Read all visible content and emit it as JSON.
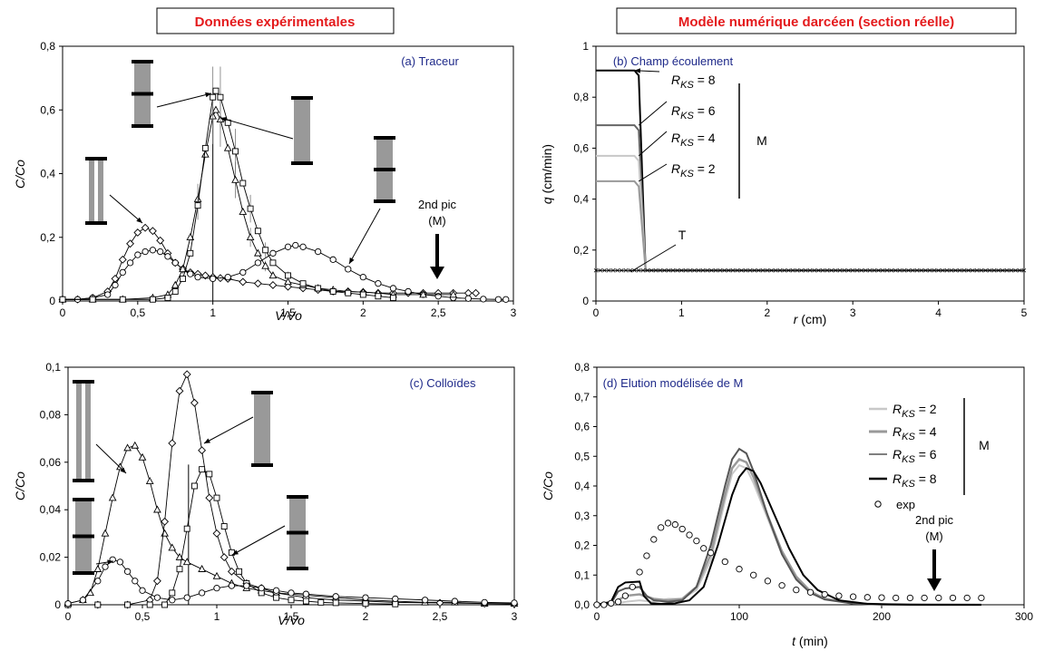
{
  "headers": {
    "left": "Données expérimentales",
    "right": "Modèle numérique darcéen (section réelle)",
    "color": "#e41a1c"
  },
  "chart_data": [
    {
      "id": "a",
      "type": "line",
      "panel_label": "(a) Traceur",
      "xlabel": "V/Vo",
      "ylabel": "C/Co",
      "xlim": [
        0,
        3
      ],
      "ylim": [
        0,
        0.8
      ],
      "xticks": [
        "0",
        "0,5",
        "1",
        "1,5",
        "2",
        "2,5",
        "3"
      ],
      "yticks": [
        "0",
        "0,2",
        "0,4",
        "0,6",
        "0,8"
      ],
      "annotation": {
        "line1": "2nd pic",
        "line2": "(M)"
      },
      "series": [
        {
          "marker": "diamond",
          "x": [
            0,
            0.1,
            0.2,
            0.3,
            0.35,
            0.4,
            0.45,
            0.5,
            0.55,
            0.6,
            0.65,
            0.7,
            0.75,
            0.8,
            0.85,
            0.9,
            0.95,
            1.0,
            1.05,
            1.1,
            1.2,
            1.3,
            1.4,
            1.5,
            1.6,
            1.7,
            1.8,
            1.9,
            2.0,
            2.1,
            2.2,
            2.3,
            2.4,
            2.5,
            2.6,
            2.7,
            2.75
          ],
          "y": [
            0.005,
            0.005,
            0.01,
            0.03,
            0.07,
            0.13,
            0.18,
            0.215,
            0.23,
            0.22,
            0.19,
            0.15,
            0.12,
            0.1,
            0.09,
            0.085,
            0.08,
            0.075,
            0.072,
            0.07,
            0.06,
            0.055,
            0.05,
            0.045,
            0.04,
            0.035,
            0.03,
            0.03,
            0.028,
            0.025,
            0.025,
            0.025,
            0.025,
            0.025,
            0.025,
            0.025,
            0.025
          ]
        },
        {
          "marker": "circle",
          "x": [
            0,
            0.1,
            0.2,
            0.3,
            0.35,
            0.4,
            0.45,
            0.5,
            0.55,
            0.6,
            0.65,
            0.7,
            0.75,
            0.8,
            0.85,
            0.9,
            1.0,
            1.1,
            1.2,
            1.3,
            1.4,
            1.5,
            1.55,
            1.6,
            1.7,
            1.8,
            1.9,
            2.0,
            2.1,
            2.2,
            2.3,
            2.4,
            2.5,
            2.6,
            2.7,
            2.8,
            2.9,
            2.95
          ],
          "y": [
            0.005,
            0.005,
            0.01,
            0.02,
            0.05,
            0.09,
            0.12,
            0.145,
            0.155,
            0.16,
            0.155,
            0.14,
            0.12,
            0.1,
            0.085,
            0.075,
            0.07,
            0.075,
            0.09,
            0.12,
            0.15,
            0.17,
            0.175,
            0.17,
            0.155,
            0.13,
            0.1,
            0.075,
            0.055,
            0.04,
            0.03,
            0.02,
            0.015,
            0.01,
            0.008,
            0.006,
            0.005,
            0.005
          ]
        },
        {
          "marker": "triangle",
          "x": [
            0,
            0.2,
            0.4,
            0.6,
            0.7,
            0.75,
            0.8,
            0.85,
            0.9,
            0.95,
            1.0,
            1.02,
            1.05,
            1.1,
            1.15,
            1.2,
            1.25,
            1.3,
            1.35,
            1.4,
            1.5,
            1.6,
            1.7,
            1.8,
            1.9,
            2.0,
            2.1,
            2.2,
            2.4,
            2.6
          ],
          "y": [
            0.005,
            0.005,
            0.005,
            0.01,
            0.02,
            0.05,
            0.1,
            0.2,
            0.32,
            0.46,
            0.58,
            0.6,
            0.57,
            0.48,
            0.38,
            0.28,
            0.2,
            0.15,
            0.11,
            0.08,
            0.06,
            0.05,
            0.04,
            0.035,
            0.03,
            0.028,
            0.025,
            0.02,
            0.02,
            0.02
          ]
        },
        {
          "marker": "square",
          "x": [
            0,
            0.2,
            0.4,
            0.6,
            0.7,
            0.75,
            0.8,
            0.85,
            0.9,
            0.95,
            1.0,
            1.02,
            1.05,
            1.1,
            1.15,
            1.2,
            1.25,
            1.3,
            1.35,
            1.4,
            1.5,
            1.6,
            1.7,
            1.8,
            1.9,
            2.0,
            2.1,
            2.2
          ],
          "y": [
            0.005,
            0.005,
            0.005,
            0.005,
            0.01,
            0.03,
            0.07,
            0.15,
            0.3,
            0.48,
            0.64,
            0.66,
            0.64,
            0.56,
            0.47,
            0.37,
            0.29,
            0.22,
            0.16,
            0.12,
            0.08,
            0.055,
            0.04,
            0.03,
            0.025,
            0.02,
            0.015,
            0.01
          ]
        }
      ]
    },
    {
      "id": "b",
      "type": "line",
      "panel_label": "(b) Champ écoulement",
      "xlabel_italic": "r",
      "xlabel_unit": " (cm)",
      "ylabel_italic": "q",
      "ylabel_unit": " (cm/min)",
      "xlim": [
        0,
        5
      ],
      "ylim": [
        0,
        1
      ],
      "xticks": [
        "0",
        "1",
        "2",
        "3",
        "4",
        "5"
      ],
      "yticks": [
        "0",
        "0,2",
        "0,4",
        "0,6",
        "0,8",
        "1"
      ],
      "group_label": "M",
      "tracer_label": "T",
      "rks_symbol": "R",
      "rks_sub": "KS",
      "series": [
        {
          "label": "= 8",
          "color": "#000000",
          "q_left": 0.905,
          "r_step": 0.5
        },
        {
          "label": "= 6",
          "color": "#666666",
          "q_left": 0.69,
          "r_step": 0.5
        },
        {
          "label": "= 4",
          "color": "#c8c8c8",
          "q_left": 0.57,
          "r_step": 0.5
        },
        {
          "label": "= 2",
          "color": "#999999",
          "q_left": 0.47,
          "r_step": 0.5
        },
        {
          "label": "T",
          "color": "#000000",
          "q_left": 0.12,
          "r_step": 0
        }
      ],
      "q_right": 0.12,
      "r_drop_end": 0.58
    },
    {
      "id": "c",
      "type": "line",
      "panel_label": "(c) Colloïdes",
      "xlabel": "V/Vo",
      "ylabel": "C/Co",
      "xlim": [
        0,
        3
      ],
      "ylim": [
        0,
        0.1
      ],
      "xticks": [
        "0",
        "0,5",
        "1",
        "1,5",
        "2",
        "2,5",
        "3"
      ],
      "yticks": [
        "0",
        "0,02",
        "0,04",
        "0,06",
        "0,08",
        "0,1"
      ],
      "series": [
        {
          "marker": "triangle",
          "x": [
            0,
            0.1,
            0.15,
            0.2,
            0.25,
            0.3,
            0.35,
            0.4,
            0.45,
            0.5,
            0.55,
            0.6,
            0.65,
            0.7,
            0.75,
            0.8,
            0.9,
            1.0,
            1.1,
            1.2,
            1.3,
            1.4,
            1.6,
            1.8,
            2.0,
            2.2,
            2.4,
            2.6,
            2.8,
            3.0
          ],
          "y": [
            0.0005,
            0.002,
            0.005,
            0.015,
            0.03,
            0.045,
            0.058,
            0.066,
            0.067,
            0.062,
            0.052,
            0.04,
            0.03,
            0.024,
            0.02,
            0.018,
            0.015,
            0.012,
            0.009,
            0.007,
            0.006,
            0.005,
            0.004,
            0.003,
            0.002,
            0.0015,
            0.001,
            0.001,
            0.0005,
            0.0005
          ]
        },
        {
          "marker": "diamond",
          "x": [
            0,
            0.2,
            0.4,
            0.55,
            0.6,
            0.65,
            0.7,
            0.75,
            0.8,
            0.85,
            0.9,
            0.95,
            1.0,
            1.05,
            1.1,
            1.2,
            1.3,
            1.4,
            1.6,
            1.8,
            2.0,
            2.2,
            2.5,
            2.8,
            3.0
          ],
          "y": [
            0.0,
            0.0,
            0.0,
            0.002,
            0.01,
            0.035,
            0.068,
            0.09,
            0.097,
            0.085,
            0.065,
            0.045,
            0.03,
            0.02,
            0.014,
            0.009,
            0.007,
            0.005,
            0.003,
            0.002,
            0.0015,
            0.001,
            0.0008,
            0.0005,
            0.0003
          ]
        },
        {
          "marker": "square",
          "x": [
            0,
            0.2,
            0.4,
            0.55,
            0.65,
            0.7,
            0.75,
            0.8,
            0.85,
            0.9,
            0.95,
            1.0,
            1.05,
            1.1,
            1.15,
            1.2,
            1.3,
            1.4,
            1.5,
            1.6,
            1.7,
            1.8,
            2.0,
            2.2
          ],
          "y": [
            0.0,
            0.0,
            0.0,
            0.0,
            0.0,
            0.005,
            0.015,
            0.032,
            0.05,
            0.057,
            0.055,
            0.045,
            0.033,
            0.022,
            0.014,
            0.009,
            0.005,
            0.003,
            0.002,
            0.0015,
            0.001,
            0.0008,
            0.0005,
            0.0003
          ]
        },
        {
          "marker": "circle",
          "x": [
            0,
            0.1,
            0.2,
            0.25,
            0.3,
            0.35,
            0.4,
            0.45,
            0.5,
            0.6,
            0.7,
            0.8,
            0.9,
            1.0,
            1.1,
            1.2,
            1.3,
            1.4,
            1.5,
            1.6,
            1.8,
            2.0,
            2.2,
            2.4,
            2.6,
            2.8,
            3.0
          ],
          "y": [
            0.0005,
            0.002,
            0.01,
            0.016,
            0.019,
            0.018,
            0.014,
            0.01,
            0.006,
            0.003,
            0.002,
            0.003,
            0.005,
            0.007,
            0.008,
            0.008,
            0.007,
            0.006,
            0.005,
            0.0045,
            0.0035,
            0.003,
            0.0025,
            0.002,
            0.0015,
            0.001,
            0.0008
          ]
        }
      ]
    },
    {
      "id": "d",
      "type": "line",
      "panel_label": "(d) Elution modélisée de M",
      "xlabel_italic": "t",
      "xlabel_unit": " (min)",
      "ylabel": "C/Co",
      "xlim": [
        0,
        300
      ],
      "ylim": [
        0,
        0.8
      ],
      "xticks": [
        "0",
        "100",
        "200",
        "300"
      ],
      "yticks": [
        "0,0",
        "0,1",
        "0,2",
        "0,3",
        "0,4",
        "0,5",
        "0,6",
        "0,7",
        "0,8"
      ],
      "annotation": {
        "line1": "2nd pic",
        "line2": "(M)"
      },
      "group_label": "M",
      "rks_symbol": "R",
      "rks_sub": "KS",
      "legend": [
        {
          "label": "= 2",
          "color": "#c8c8c8",
          "width": 2.5
        },
        {
          "label": "= 4",
          "color": "#999999",
          "width": 3
        },
        {
          "label": "= 6",
          "color": "#555555",
          "width": 1.5
        },
        {
          "label": "= 8",
          "color": "#000000",
          "width": 2.5
        }
      ],
      "exp_label": "exp",
      "series": [
        {
          "name": "R = 2",
          "color": "#c8c8c8",
          "x": [
            0,
            10,
            20,
            30,
            40,
            50,
            60,
            70,
            80,
            90,
            95,
            100,
            105,
            110,
            120,
            130,
            140,
            150,
            160,
            180,
            200,
            230,
            270
          ],
          "y": [
            0,
            0,
            0.01,
            0.015,
            0.01,
            0.02,
            0.02,
            0.05,
            0.15,
            0.35,
            0.44,
            0.47,
            0.46,
            0.41,
            0.29,
            0.17,
            0.09,
            0.045,
            0.02,
            0.005,
            0.001,
            0,
            0
          ]
        },
        {
          "name": "R = 4",
          "color": "#999999",
          "x": [
            0,
            10,
            20,
            30,
            40,
            50,
            60,
            70,
            80,
            90,
            95,
            100,
            105,
            110,
            120,
            130,
            140,
            150,
            160,
            180,
            200,
            230,
            270
          ],
          "y": [
            0,
            0.001,
            0.03,
            0.035,
            0.02,
            0.015,
            0.02,
            0.06,
            0.17,
            0.37,
            0.46,
            0.49,
            0.48,
            0.43,
            0.3,
            0.18,
            0.095,
            0.045,
            0.02,
            0.005,
            0.001,
            0,
            0
          ]
        },
        {
          "name": "R = 6",
          "color": "#555555",
          "x": [
            0,
            10,
            15,
            20,
            30,
            35,
            40,
            50,
            60,
            70,
            80,
            90,
            95,
            100,
            105,
            110,
            120,
            130,
            140,
            150,
            160,
            180,
            200,
            230,
            270
          ],
          "y": [
            0,
            0.005,
            0.045,
            0.055,
            0.06,
            0.03,
            0.015,
            0.01,
            0.015,
            0.06,
            0.2,
            0.4,
            0.49,
            0.525,
            0.51,
            0.45,
            0.3,
            0.17,
            0.085,
            0.04,
            0.018,
            0.004,
            0.001,
            0,
            0
          ]
        },
        {
          "name": "R = 8",
          "color": "#000000",
          "x": [
            0,
            10,
            15,
            20,
            30,
            33,
            38,
            45,
            55,
            65,
            75,
            85,
            95,
            100,
            105,
            110,
            115,
            125,
            135,
            145,
            155,
            170,
            190,
            220,
            270
          ],
          "y": [
            0,
            0.01,
            0.06,
            0.075,
            0.078,
            0.03,
            0.005,
            0.003,
            0.005,
            0.015,
            0.06,
            0.2,
            0.37,
            0.43,
            0.46,
            0.45,
            0.41,
            0.3,
            0.19,
            0.1,
            0.05,
            0.015,
            0.003,
            0.0005,
            0
          ]
        }
      ],
      "exp": {
        "x": [
          0,
          5,
          10,
          15,
          20,
          25,
          30,
          35,
          40,
          45,
          50,
          55,
          60,
          65,
          70,
          75,
          80,
          90,
          100,
          110,
          120,
          130,
          140,
          150,
          160,
          170,
          180,
          190,
          200,
          210,
          220,
          230,
          240,
          250,
          260,
          270
        ],
        "y": [
          0,
          0,
          0.005,
          0.01,
          0.03,
          0.06,
          0.11,
          0.165,
          0.22,
          0.26,
          0.275,
          0.27,
          0.255,
          0.235,
          0.215,
          0.19,
          0.175,
          0.145,
          0.12,
          0.1,
          0.08,
          0.065,
          0.05,
          0.042,
          0.035,
          0.03,
          0.027,
          0.025,
          0.024,
          0.023,
          0.023,
          0.023,
          0.023,
          0.023,
          0.023,
          0.023
        ]
      }
    }
  ]
}
